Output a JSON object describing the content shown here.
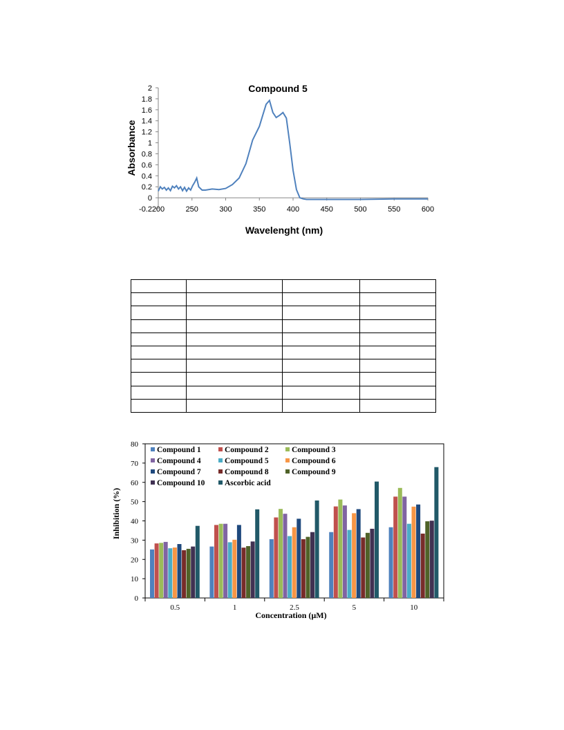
{
  "chart_data": [
    {
      "type": "line",
      "title": "Compound 5",
      "xlabel": "Wavelenght (nm)",
      "ylabel": "Absorbance",
      "xlim": [
        200,
        600
      ],
      "ylim": [
        -0.2,
        2
      ],
      "x_ticks": [
        "200",
        "250",
        "300",
        "350",
        "400",
        "450",
        "500",
        "550",
        "600"
      ],
      "y_ticks": [
        "-0.2",
        "0",
        "0.2",
        "0.4",
        "0.6",
        "0.8",
        "1",
        "1.2",
        "1.4",
        "1.6",
        "1.8",
        "2"
      ],
      "grid": false,
      "color": "#4f81bd",
      "series": [
        {
          "x": [
            200,
            203,
            206,
            209,
            212,
            215,
            218,
            221,
            224,
            227,
            230,
            233,
            236,
            239,
            242,
            245,
            248,
            251,
            254,
            257,
            260,
            265,
            270,
            280,
            290,
            300,
            310,
            320,
            330,
            340,
            350,
            355,
            360,
            365,
            370,
            375,
            380,
            385,
            390,
            395,
            400,
            405,
            410,
            415,
            420,
            430,
            450,
            500,
            550,
            600
          ],
          "y": [
            0.12,
            0.2,
            0.16,
            0.19,
            0.14,
            0.18,
            0.13,
            0.21,
            0.18,
            0.22,
            0.16,
            0.2,
            0.13,
            0.19,
            0.12,
            0.18,
            0.14,
            0.22,
            0.28,
            0.36,
            0.2,
            0.14,
            0.14,
            0.16,
            0.15,
            0.17,
            0.24,
            0.36,
            0.62,
            1.05,
            1.3,
            1.5,
            1.7,
            1.77,
            1.55,
            1.46,
            1.5,
            1.55,
            1.45,
            1.0,
            0.5,
            0.15,
            0.0,
            -0.02,
            -0.03,
            -0.03,
            -0.03,
            -0.03,
            -0.02,
            -0.02
          ]
        }
      ]
    },
    {
      "type": "bar",
      "title": "",
      "xlabel": "Concentration (µM)",
      "ylabel": "Inhibition (%)",
      "ylim": [
        0,
        80
      ],
      "y_ticks": [
        "0",
        "10",
        "20",
        "30",
        "40",
        "50",
        "60",
        "70",
        "80"
      ],
      "grid": false,
      "legend": "top",
      "categories": [
        "0.5",
        "1",
        "2.5",
        "5",
        "10"
      ],
      "series": [
        {
          "name": "Compound 1",
          "color": "#4f81bd",
          "values": [
            25.2,
            26.7,
            30.5,
            34.2,
            36.7
          ]
        },
        {
          "name": "Compound 2",
          "color": "#c0504d",
          "values": [
            28.3,
            37.9,
            41.8,
            47.5,
            52.6
          ]
        },
        {
          "name": "Compound 3",
          "color": "#9bbb59",
          "values": [
            28.6,
            38.5,
            46.2,
            51.1,
            57.1
          ]
        },
        {
          "name": "Compound 4",
          "color": "#8064a2",
          "values": [
            29.1,
            38.5,
            43.7,
            48.0,
            52.6
          ]
        },
        {
          "name": "Compound 5",
          "color": "#4bacc6",
          "values": [
            25.8,
            28.9,
            32.1,
            35.3,
            38.5
          ]
        },
        {
          "name": "Compound 6",
          "color": "#f79646",
          "values": [
            26.2,
            30.2,
            36.7,
            44.0,
            47.4
          ]
        },
        {
          "name": "Compound 7",
          "color": "#1f497d",
          "values": [
            28.0,
            37.9,
            41.1,
            46.1,
            48.5
          ]
        },
        {
          "name": "Compound 8",
          "color": "#772c2a",
          "values": [
            24.8,
            26.1,
            30.5,
            31.4,
            33.4
          ]
        },
        {
          "name": "Compound 9",
          "color": "#4f6228",
          "values": [
            25.5,
            26.9,
            31.7,
            33.8,
            39.8
          ]
        },
        {
          "name": "Compound 10",
          "color": "#403152",
          "values": [
            26.7,
            29.3,
            34.2,
            35.9,
            40.1
          ]
        },
        {
          "name": "Ascorbic acid",
          "color": "#215968",
          "values": [
            37.4,
            46.0,
            50.6,
            60.4,
            67.9
          ]
        }
      ]
    }
  ],
  "table": {
    "rows": 10,
    "cols": 4
  }
}
